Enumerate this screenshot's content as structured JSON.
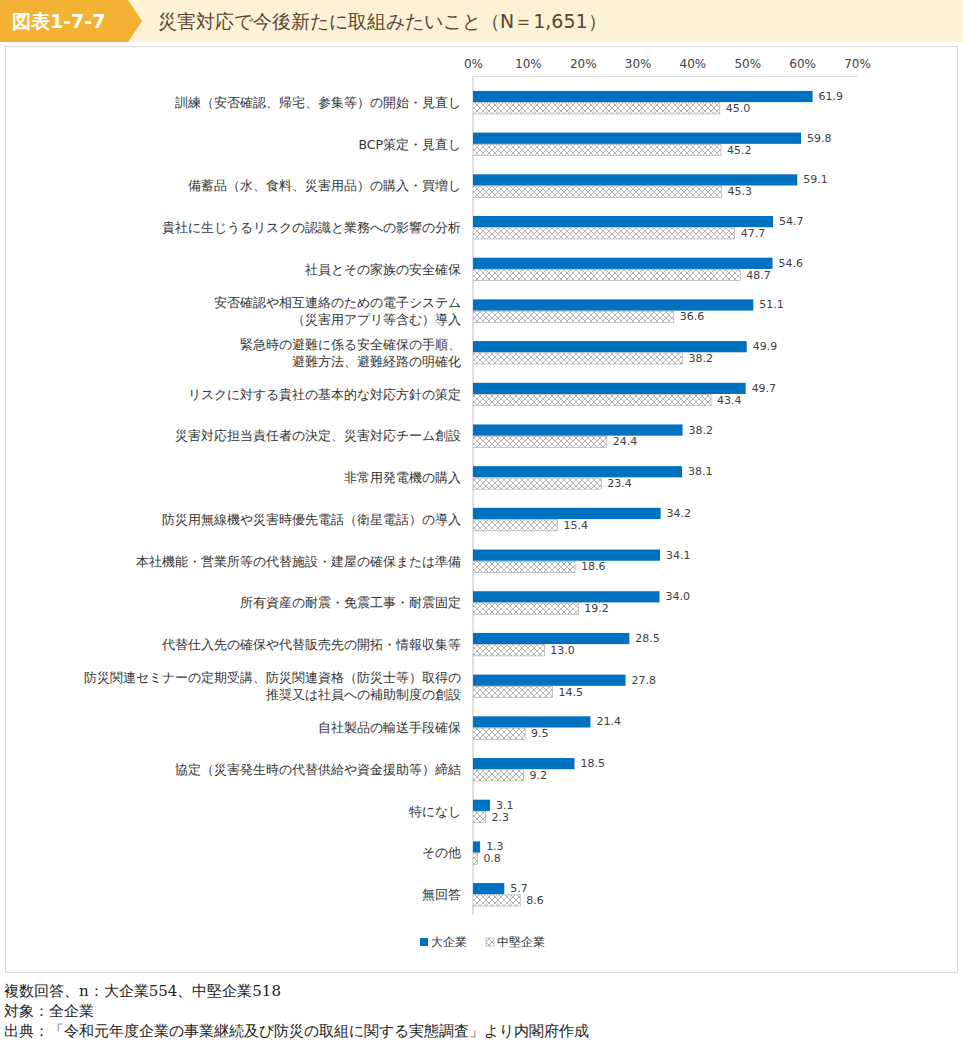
{
  "chart_data": {
    "type": "bar",
    "orientation": "horizontal",
    "title": "災害対応で今後新たに取組みたいこと（N＝1,651）",
    "annotations": [
      "図表1-7-7",
      "複数回答、n：大企業554、中堅企業518",
      "対象：全企業",
      "出典：「令和元年度企業の事業継続及び防災の取組に関する実態調査」より内閣府作成"
    ],
    "categories": [
      "訓練（安否確認、帰宅、参集等）の開始・見直し",
      "BCP策定・見直し",
      "備蓄品（水、食料、災害用品）の購入・買増し",
      "貴社に生じうるリスクの認識と業務への影響の分析",
      "社員とその家族の安全確保",
      "安否確認や相互連絡のための電子システム\n（災害用アプリ等含む）導入",
      "緊急時の避難に係る安全確保の手順、\n避難方法、避難経路の明確化",
      "リスクに対する貴社の基本的な対応方針の策定",
      "災害対応担当責任者の決定、災害対応チーム創設",
      "非常用発電機の購入",
      "防災用無線機や災害時優先電話（衛星電話）の導入",
      "本社機能・営業所等の代替施設・建屋の確保または準備",
      "所有資産の耐震・免震工事・耐震固定",
      "代替仕入先の確保や代替販売先の開拓・情報収集等",
      "防災関連セミナーの定期受講、防災関連資格（防災士等）取得の\n推奨又は社員への補助制度の創設",
      "自社製品の輸送手段確保",
      "協定（災害発生時の代替供給や資金援助等）締結",
      "特になし",
      "その他",
      "無回答"
    ],
    "series": [
      {
        "name": "大企業",
        "color": "#0070c0",
        "values": [
          61.9,
          59.8,
          59.1,
          54.7,
          54.6,
          51.1,
          49.9,
          49.7,
          38.2,
          38.1,
          34.2,
          34.1,
          34.0,
          28.5,
          27.8,
          21.4,
          18.5,
          3.1,
          1.3,
          5.7
        ],
        "value_labels": [
          "61.9",
          "59.8",
          "59.1",
          "54.7",
          "54.6",
          "51.1",
          "49.9",
          "49.7",
          "38.2",
          "38.1",
          "34.2",
          "34.1",
          "34.0",
          "28.5",
          "27.8",
          "21.4",
          "18.5",
          "3.1",
          "1.3",
          "5.7"
        ]
      },
      {
        "name": "中堅企業",
        "color": "#a6a6a6",
        "values": [
          45.0,
          45.2,
          45.3,
          47.7,
          48.7,
          36.6,
          38.2,
          43.4,
          24.4,
          23.4,
          15.4,
          18.6,
          19.2,
          13.0,
          14.5,
          9.5,
          9.2,
          2.3,
          0.8,
          8.6
        ],
        "value_labels": [
          "45.0",
          "45.2",
          "45.3",
          "47.7",
          "48.7",
          "36.6",
          "38.2",
          "43.4",
          "24.4",
          "23.4",
          "15.4",
          "18.6",
          "19.2",
          "13.0",
          "14.5",
          "9.5",
          "9.2",
          "2.3",
          "0.8",
          "8.6"
        ]
      }
    ],
    "xlim": [
      0,
      70
    ],
    "xticks": [
      {
        "value": 0,
        "label": "0%"
      },
      {
        "value": 10,
        "label": "10%"
      },
      {
        "value": 20,
        "label": "20%"
      },
      {
        "value": 30,
        "label": "30%"
      },
      {
        "value": 40,
        "label": "40%"
      },
      {
        "value": 50,
        "label": "50%"
      },
      {
        "value": 60,
        "label": "60%"
      },
      {
        "value": 70,
        "label": "70%"
      }
    ],
    "grid": false,
    "data_labels": true,
    "legend": "bottom"
  }
}
